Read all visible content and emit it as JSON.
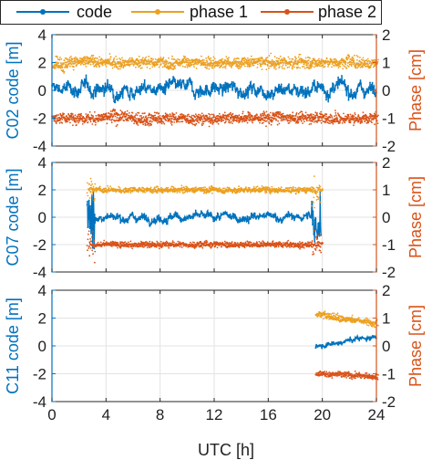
{
  "colors": {
    "code": "#0072BD",
    "phase1": "#EDA020",
    "phase2": "#D95319",
    "axis": "#262626"
  },
  "legend": {
    "placement": "top",
    "entries": [
      "code",
      "phase 1",
      "phase 2"
    ]
  },
  "x_axis": {
    "label": "UTC [h]",
    "ticks": [
      "0",
      "4",
      "8",
      "12",
      "16",
      "20",
      "24"
    ]
  },
  "chart_data": [
    {
      "type": "scatter",
      "panel": "C02",
      "ylabel_left": "C02 code [m]",
      "ylabel_right": "Phase [cm]",
      "xlim": [
        0,
        24
      ],
      "ylim_left": [
        -4,
        4
      ],
      "ylim_right": [
        -2,
        2
      ],
      "yticks_left": [
        "-4",
        "-2",
        "0",
        "2",
        "4"
      ],
      "yticks_right": [
        "-2",
        "-1",
        "0",
        "1",
        "2"
      ],
      "grid": true,
      "series": [
        {
          "name": "code",
          "axis": "left",
          "x_range": [
            0,
            24
          ],
          "mean": 0.1,
          "noise": 0.35
        },
        {
          "name": "phase 1",
          "axis": "right",
          "x_range": [
            0,
            24
          ],
          "mean": 1.0,
          "noise": 0.1
        },
        {
          "name": "phase 2",
          "axis": "right",
          "x_range": [
            0,
            24
          ],
          "mean": -1.0,
          "noise": 0.1
        }
      ]
    },
    {
      "type": "scatter",
      "panel": "C07",
      "ylabel_left": "C07 code [m]",
      "ylabel_right": "Phase [cm]",
      "xlim": [
        0,
        24
      ],
      "ylim_left": [
        -4,
        4
      ],
      "ylim_right": [
        -2,
        2
      ],
      "yticks_left": [
        "-4",
        "-2",
        "0",
        "2",
        "4"
      ],
      "yticks_right": [
        "-2",
        "-1",
        "0",
        "1",
        "2"
      ],
      "grid": true,
      "series": [
        {
          "name": "code",
          "axis": "left",
          "x_range": [
            2.6,
            19.9
          ],
          "mean": 0.0,
          "noise": 0.2
        },
        {
          "name": "phase 1",
          "axis": "right",
          "x_range": [
            2.6,
            19.9
          ],
          "mean": 1.0,
          "noise": 0.05
        },
        {
          "name": "phase 2",
          "axis": "right",
          "x_range": [
            2.6,
            19.9
          ],
          "mean": -1.0,
          "noise": 0.05
        }
      ]
    },
    {
      "type": "scatter",
      "panel": "C11",
      "ylabel_left": "C11 code [m]",
      "ylabel_right": "Phase [cm]",
      "xlim": [
        0,
        24
      ],
      "ylim_left": [
        -4,
        4
      ],
      "ylim_right": [
        -2,
        2
      ],
      "yticks_left": [
        "-4",
        "-2",
        "0",
        "2",
        "4"
      ],
      "yticks_right": [
        "-2",
        "-1",
        "0",
        "1",
        "2"
      ],
      "grid": true,
      "series": [
        {
          "name": "code",
          "axis": "left",
          "x_range": [
            19.5,
            24
          ],
          "start": 0.0,
          "end": 0.7,
          "noise": 0.12
        },
        {
          "name": "phase 1",
          "axis": "right",
          "x_range": [
            19.5,
            24
          ],
          "start": 1.15,
          "end": 0.8,
          "noise": 0.06
        },
        {
          "name": "phase 2",
          "axis": "right",
          "x_range": [
            19.5,
            24
          ],
          "start": -0.98,
          "end": -1.12,
          "noise": 0.05
        }
      ]
    }
  ]
}
